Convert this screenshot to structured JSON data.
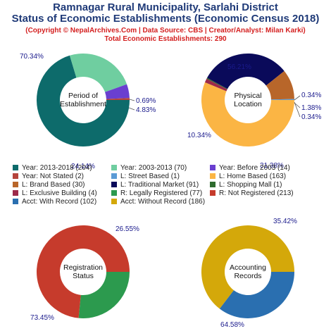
{
  "header": {
    "title_line1": "Ramnagar Rural Municipality, Sarlahi District",
    "title_line2": "Status of Economic Establishments (Economic Census 2018)",
    "source_line": "(Copyright © NepalArchives.Com | Data Source: CBS | Creator/Analyst: Milan Karki)",
    "total_line": "Total Economic Establishments: 290"
  },
  "legend": [
    {
      "label": "Year: 2013-2018 (204)",
      "color": "#0d6b6b"
    },
    {
      "label": "Year: 2003-2013 (70)",
      "color": "#6fcea0"
    },
    {
      "label": "Year: Before 2003 (14)",
      "color": "#6a3fd0"
    },
    {
      "label": "Year: Not Stated (2)",
      "color": "#b5443c"
    },
    {
      "label": "L: Street Based (1)",
      "color": "#5b9bd5"
    },
    {
      "label": "L: Home Based (163)",
      "color": "#fbb544"
    },
    {
      "label": "L: Brand Based (30)",
      "color": "#b8662a"
    },
    {
      "label": "L: Traditional Market (91)",
      "color": "#0a0a5a"
    },
    {
      "label": "L: Shopping Mall (1)",
      "color": "#2e6b2e"
    },
    {
      "label": "L: Exclusive Building (4)",
      "color": "#9c2a4a"
    },
    {
      "label": "R: Legally Registered (77)",
      "color": "#2c9a4e"
    },
    {
      "label": "R: Not Registered (213)",
      "color": "#c63b2c"
    },
    {
      "label": "Acct: With Record (102)",
      "color": "#2a6fb0"
    },
    {
      "label": "Acct: Without Record (186)",
      "color": "#d4a80a"
    }
  ],
  "chart_data": [
    {
      "type": "pie",
      "center_label": [
        "Period of",
        "Establishment"
      ],
      "slices": [
        {
          "name": "Year: 2013-2018",
          "value": 204,
          "pct": "70.34%",
          "color": "#0d6b6b"
        },
        {
          "name": "Year: 2003-2013",
          "value": 70,
          "pct": "24.14%",
          "color": "#6fcea0"
        },
        {
          "name": "Year: Before 2003",
          "value": 14,
          "pct": "4.83%",
          "color": "#6a3fd0"
        },
        {
          "name": "Year: Not Stated",
          "value": 2,
          "pct": "0.69%",
          "color": "#b5443c"
        }
      ]
    },
    {
      "type": "pie",
      "center_label": [
        "Physical",
        "Location"
      ],
      "slices": [
        {
          "name": "L: Home Based",
          "value": 163,
          "pct": "56.21%",
          "color": "#fbb544"
        },
        {
          "name": "L: Exclusive Building",
          "value": 4,
          "pct": "1.38%",
          "color": "#9c2a4a"
        },
        {
          "name": "L: Shopping Mall",
          "value": 1,
          "pct": "0.34%",
          "color": "#2e6b2e"
        },
        {
          "name": "L: Traditional Market",
          "value": 91,
          "pct": "31.38%",
          "color": "#0a0a5a"
        },
        {
          "name": "L: Brand Based",
          "value": 30,
          "pct": "10.34%",
          "color": "#b8662a"
        },
        {
          "name": "L: Street Based",
          "value": 1,
          "pct": "0.34%",
          "color": "#5b9bd5"
        }
      ]
    },
    {
      "type": "pie",
      "center_label": [
        "Registration",
        "Status"
      ],
      "slices": [
        {
          "name": "R: Legally Registered",
          "value": 77,
          "pct": "26.55%",
          "color": "#2c9a4e"
        },
        {
          "name": "R: Not Registered",
          "value": 213,
          "pct": "73.45%",
          "color": "#c63b2c"
        }
      ]
    },
    {
      "type": "pie",
      "center_label": [
        "Accounting",
        "Records"
      ],
      "slices": [
        {
          "name": "Acct: With Record",
          "value": 102,
          "pct": "35.42%",
          "color": "#2a6fb0"
        },
        {
          "name": "Acct: Without Record",
          "value": 186,
          "pct": "64.58%",
          "color": "#d4a80a"
        }
      ]
    }
  ]
}
